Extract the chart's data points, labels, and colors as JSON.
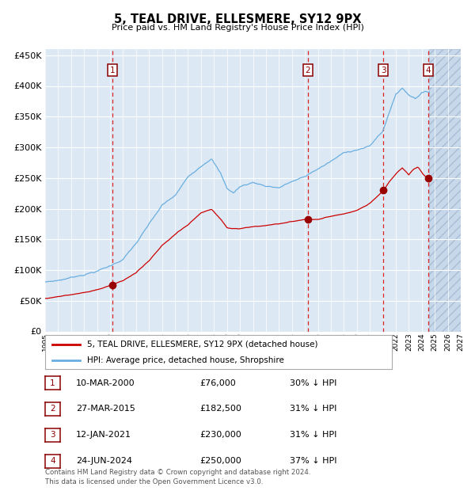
{
  "title": "5, TEAL DRIVE, ELLESMERE, SY12 9PX",
  "subtitle": "Price paid vs. HM Land Registry's House Price Index (HPI)",
  "hpi_label": "HPI: Average price, detached house, Shropshire",
  "property_label": "5, TEAL DRIVE, ELLESMERE, SY12 9PX (detached house)",
  "footer_line1": "Contains HM Land Registry data © Crown copyright and database right 2024.",
  "footer_line2": "This data is licensed under the Open Government Licence v3.0.",
  "sales": [
    {
      "num": 1,
      "date_t": 2000.19,
      "price": 76000,
      "pct": "30%",
      "label": "10-MAR-2000",
      "price_label": "£76,000"
    },
    {
      "num": 2,
      "date_t": 2015.23,
      "price": 182500,
      "pct": "31%",
      "label": "27-MAR-2015",
      "price_label": "£182,500"
    },
    {
      "num": 3,
      "date_t": 2021.03,
      "price": 230000,
      "pct": "31%",
      "label": "12-JAN-2021",
      "price_label": "£230,000"
    },
    {
      "num": 4,
      "date_t": 2024.48,
      "price": 250000,
      "pct": "37%",
      "label": "24-JUN-2024",
      "price_label": "£250,000"
    }
  ],
  "hpi_color": "#6aaee0",
  "price_color": "#cc0000",
  "sale_dot_color": "#990000",
  "bg_color": "#dce9f5",
  "grid_color": "#ffffff",
  "vline_color": "#dd2222",
  "ylim": [
    0,
    460000
  ],
  "yticks": [
    0,
    50000,
    100000,
    150000,
    200000,
    250000,
    300000,
    350000,
    400000,
    450000
  ],
  "xstart": 1995.0,
  "xend": 2027.0,
  "future_xstart": 2024.58
}
